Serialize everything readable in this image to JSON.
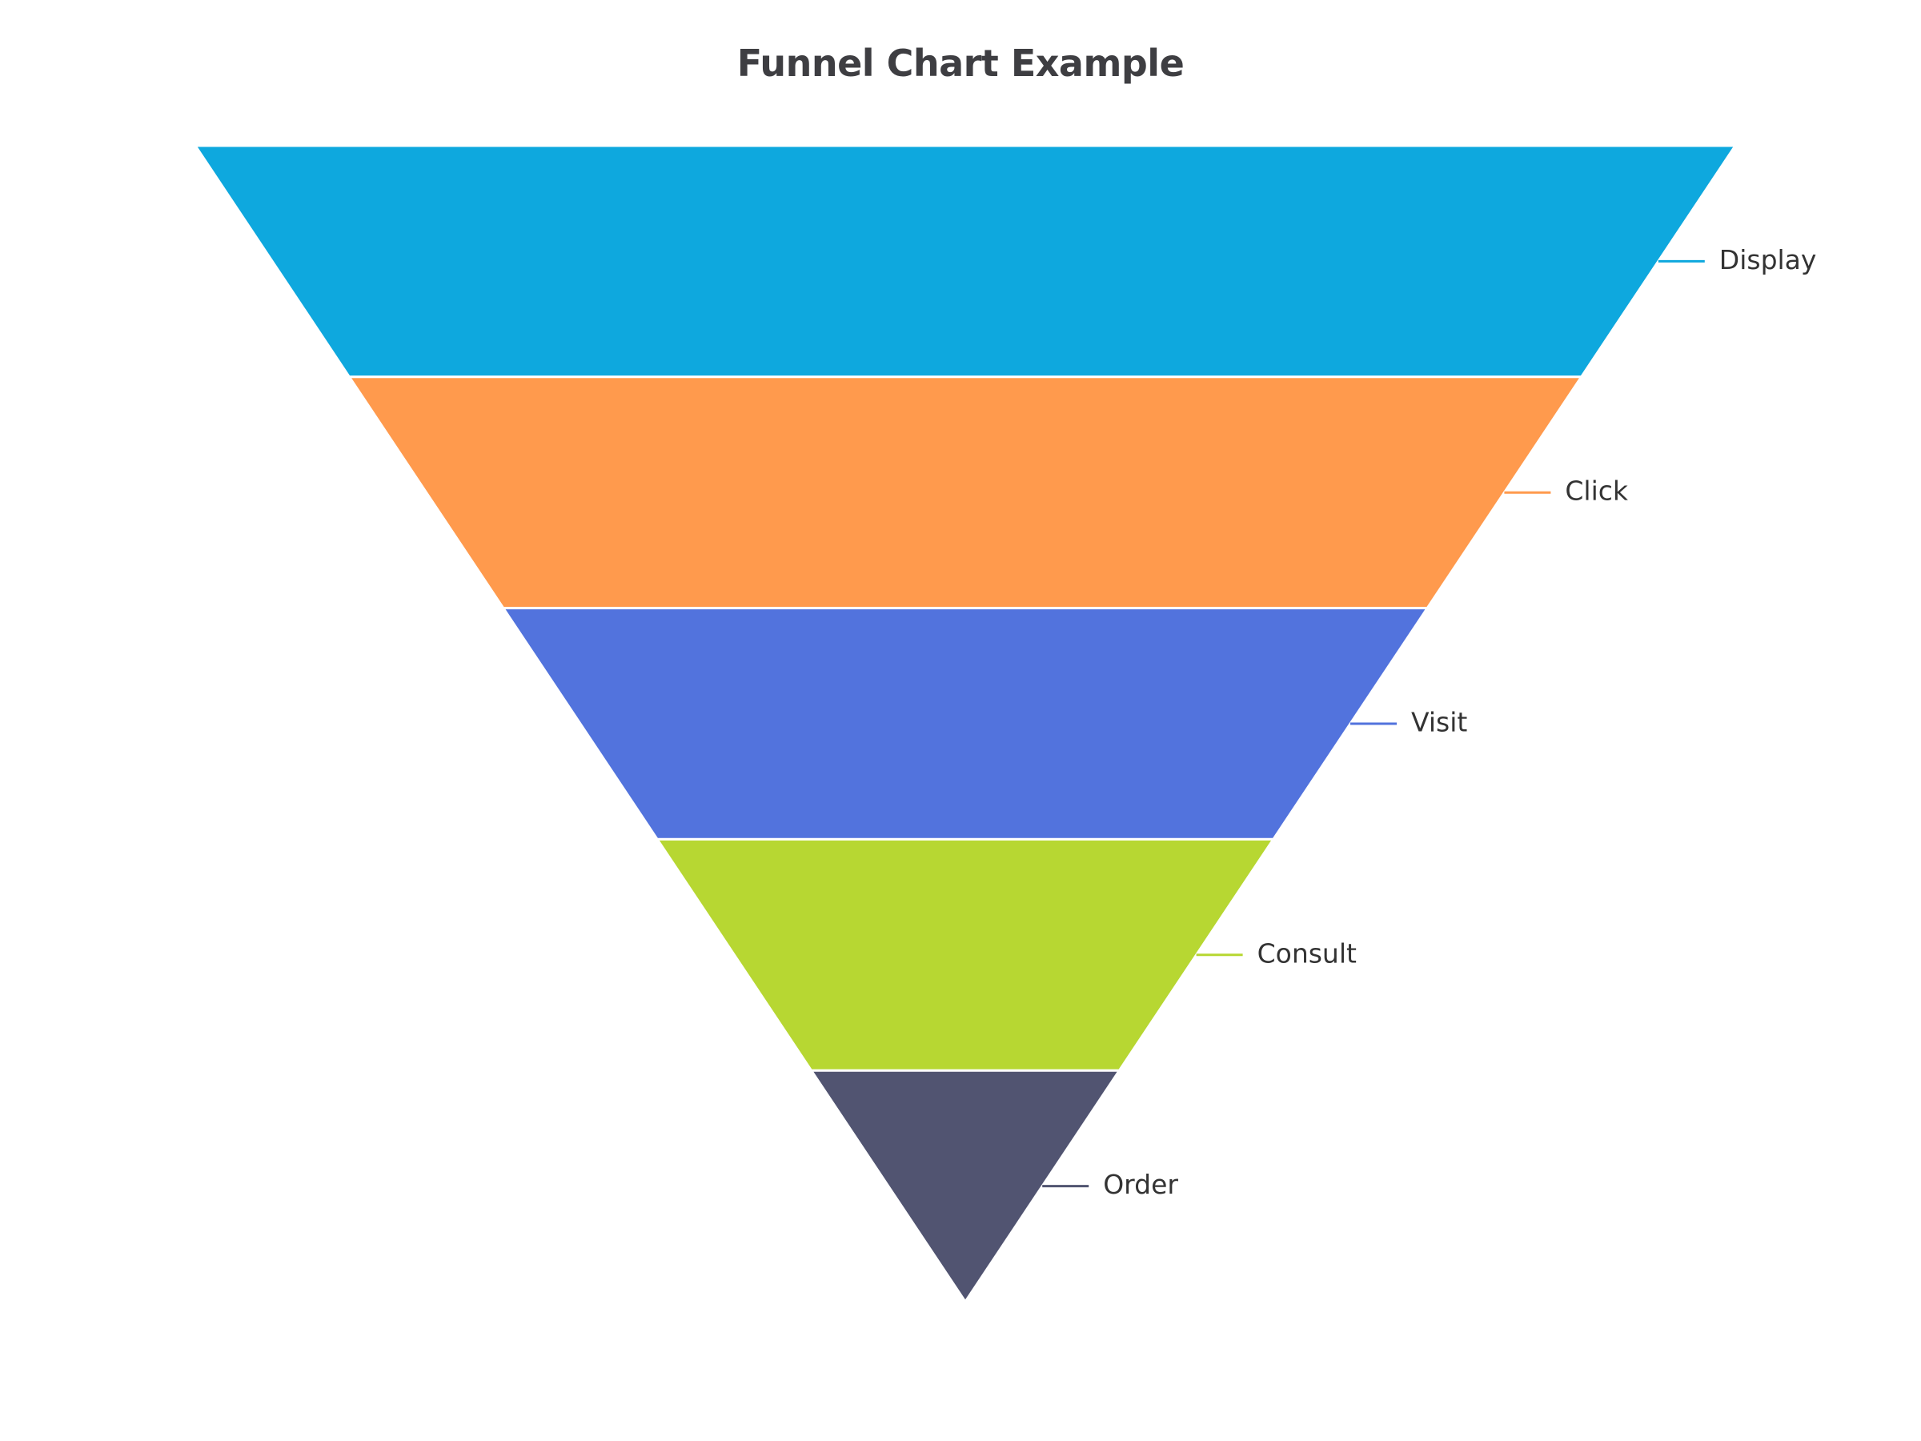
{
  "chart_data": {
    "type": "funnel",
    "title": "Funnel Chart Example",
    "categories": [
      "Display",
      "Click",
      "Visit",
      "Consult",
      "Order"
    ],
    "values": [
      100,
      80,
      60,
      40,
      20
    ],
    "colors": [
      "#0ea8de",
      "#ff9a4d",
      "#5273dd",
      "#b7d732",
      "#515471"
    ],
    "max": 100,
    "legend": "none",
    "label_position": "right"
  }
}
